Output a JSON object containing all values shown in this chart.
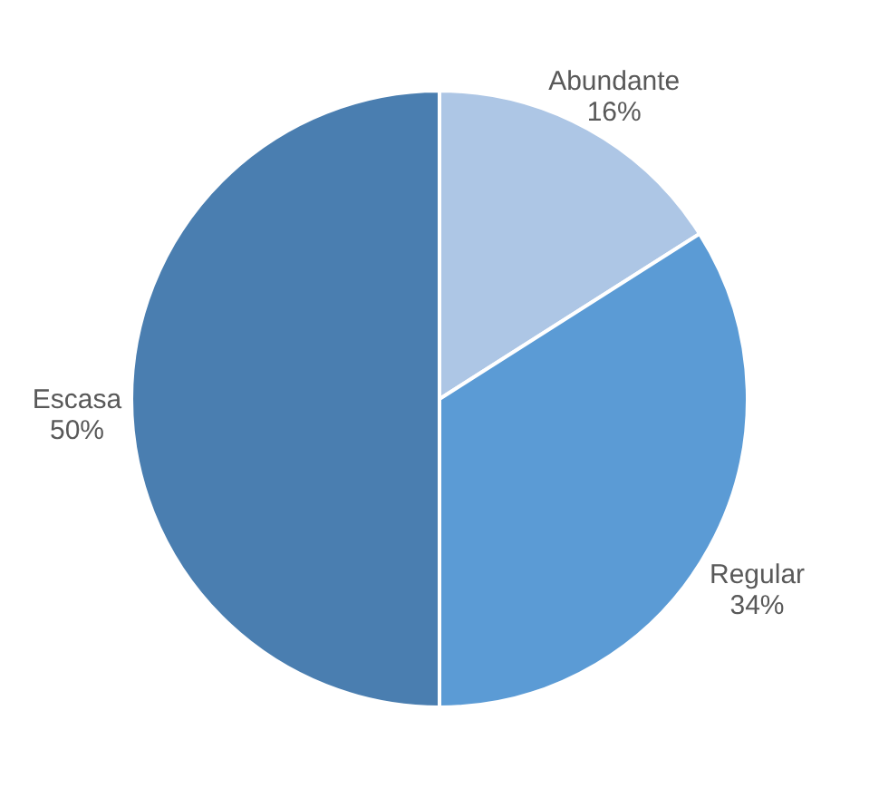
{
  "chart_data": {
    "type": "pie",
    "categories": [
      "Abundante",
      "Regular",
      "Escasa"
    ],
    "values": [
      16,
      34,
      50
    ],
    "value_labels": [
      "16%",
      "34%",
      "50%"
    ],
    "colors": [
      "#adc6e5",
      "#5b9bd5",
      "#4a7eb0"
    ]
  }
}
